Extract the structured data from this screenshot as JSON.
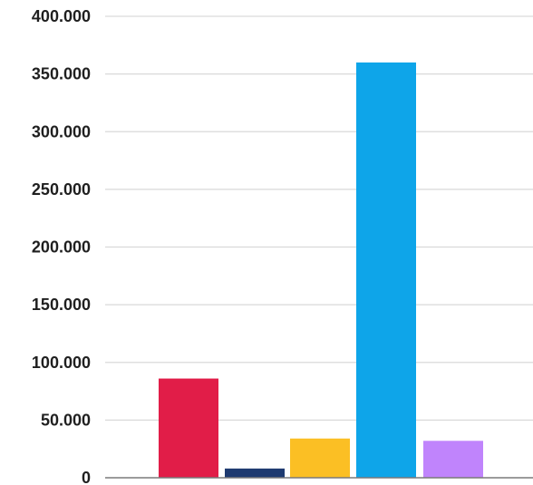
{
  "chart_data": {
    "type": "bar",
    "title": "",
    "xlabel": "",
    "ylabel": "",
    "ylim": [
      0,
      400000
    ],
    "y_ticks": [
      {
        "value": 400000,
        "label": "400.000"
      },
      {
        "value": 350000,
        "label": "350.000"
      },
      {
        "value": 300000,
        "label": "300.000"
      },
      {
        "value": 250000,
        "label": "250.000"
      },
      {
        "value": 200000,
        "label": "200.000"
      },
      {
        "value": 150000,
        "label": "150.000"
      },
      {
        "value": 100000,
        "label": "100.000"
      },
      {
        "value": 50000,
        "label": "50.000"
      },
      {
        "value": 0,
        "label": "0"
      }
    ],
    "bars": [
      {
        "value": 86000,
        "color": "#e11d48"
      },
      {
        "value": 8000,
        "color": "#1e3a70"
      },
      {
        "value": 34000,
        "color": "#fbbf24"
      },
      {
        "value": 360000,
        "color": "#0ea5e9"
      },
      {
        "value": 32000,
        "color": "#c084fc"
      }
    ],
    "grid": true,
    "legend": "none"
  }
}
